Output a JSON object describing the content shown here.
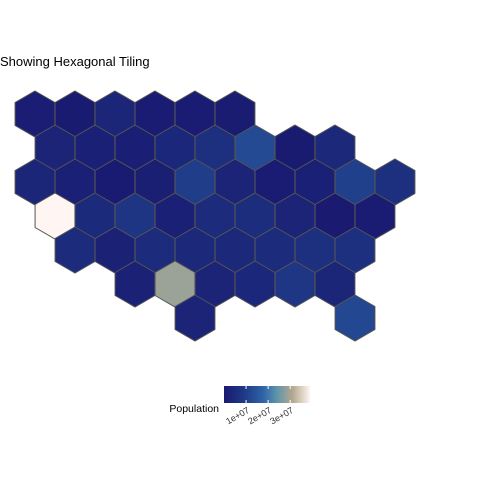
{
  "chart_data": {
    "type": "heatmap",
    "title": "Showing Hexagonal Tiling",
    "legend": {
      "title": "Population",
      "placement": "bottom",
      "min": 0,
      "max": 39000000,
      "ticks": [
        10000000,
        20000000,
        30000000
      ],
      "tick_labels": [
        "1e+07",
        "2e+07",
        "3e+07"
      ]
    },
    "palette": [
      "#191970",
      "#1f3c88",
      "#2f62a8",
      "#5f96aa",
      "#b6a88e",
      "#fff5f3"
    ],
    "border_color": "#555555",
    "grid_on": false,
    "rows": [
      [
        1200000,
        600000,
        3500000,
        800000,
        700000,
        900000
      ],
      [
        3000000,
        2000000,
        1500000,
        4000000,
        6000000,
        12700000,
        500000,
        4500000
      ],
      [
        3500000,
        2000000,
        300000,
        1800000,
        10000000,
        3000000,
        800000,
        2000000,
        10500000,
        6000000
      ],
      [
        39000000,
        4600000,
        7800000,
        2000000,
        5000000,
        5500000,
        3000000,
        200000,
        700000
      ],
      [
        5000000,
        2500000,
        5000000,
        4200000,
        4500000,
        5000000,
        6000000,
        6500000
      ],
      [
        2600000,
        29000000,
        3000000,
        4000000,
        8200000,
        3500000
      ],
      [
        3000000
      ],
      [
        12000000
      ]
    ]
  }
}
